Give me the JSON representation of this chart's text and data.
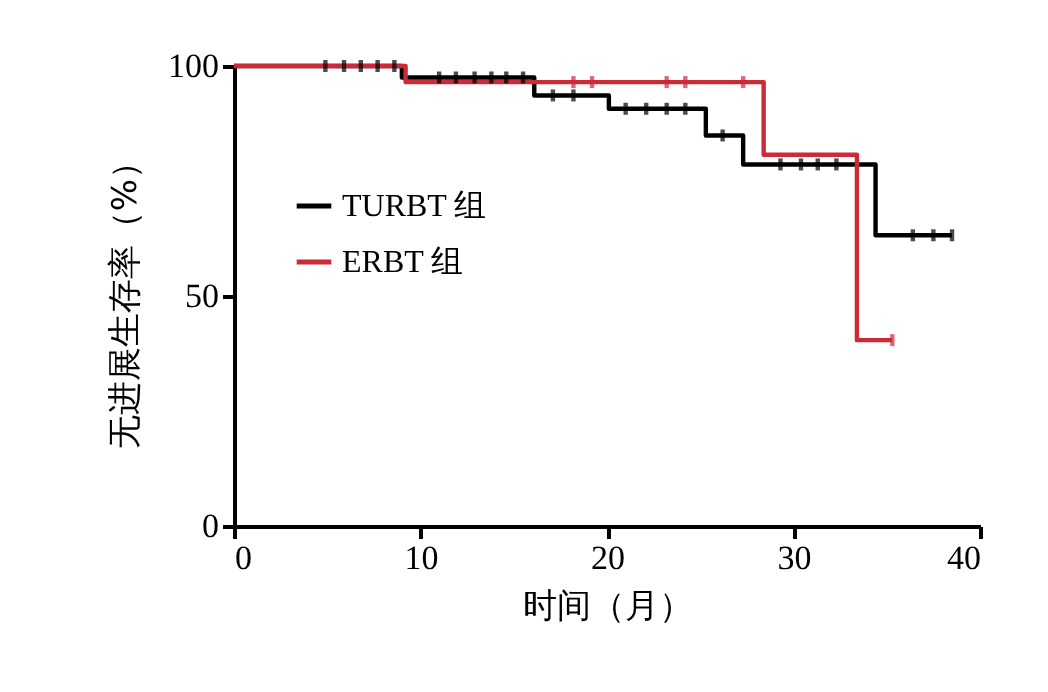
{
  "chart_data": {
    "type": "step",
    "xlabel": "时间（月）",
    "ylabel": "无进展生存率（%）",
    "xlim": [
      0,
      40
    ],
    "xticks": [
      0,
      10,
      20,
      30,
      40
    ],
    "ylim": [
      0,
      100
    ],
    "yticks": [
      0,
      50,
      100
    ],
    "grid": false,
    "legend": "top left",
    "series": [
      {
        "name": "TURBT 组",
        "color": "#000000",
        "x": [
          0,
          9,
          16.1,
          20.1,
          25.3,
          27.3,
          34.4,
          38.5
        ],
        "values": [
          100,
          97.5,
          93.6,
          90.7,
          84.9,
          78.6,
          63.2,
          63.2
        ]
      },
      {
        "name": "ERBT 组",
        "color": "#cc2a36",
        "x": [
          0,
          9.2,
          28.4,
          33.4,
          35.3
        ],
        "values": [
          100,
          96.5,
          80.7,
          40.4,
          40.4
        ]
      },
      {
        "type": "scatter",
        "color": "#000000",
        "x": [
          4.9,
          5.9,
          6.8,
          7.7,
          8.6,
          11.0,
          11.9,
          12.9,
          13.8,
          14.6,
          15.5,
          17.1,
          18.2,
          21.0,
          22.1,
          23.2,
          24.2,
          26.2,
          29.3,
          30.4,
          31.3,
          32.3,
          36.4,
          37.5,
          38.5
        ],
        "values": [
          100,
          100,
          100,
          100,
          100,
          97.5,
          97.5,
          97.5,
          97.5,
          97.5,
          97.5,
          93.6,
          93.6,
          90.7,
          90.7,
          90.7,
          90.7,
          84.9,
          78.6,
          78.6,
          78.6,
          78.6,
          63.2,
          63.2,
          63.2
        ]
      },
      {
        "type": "scatter",
        "color": "#cc2a36",
        "x": [
          18.2,
          19.2,
          23.2,
          24.2,
          27.3,
          35.3
        ],
        "values": [
          96.5,
          96.5,
          96.5,
          96.5,
          96.5,
          40.4
        ]
      }
    ]
  }
}
